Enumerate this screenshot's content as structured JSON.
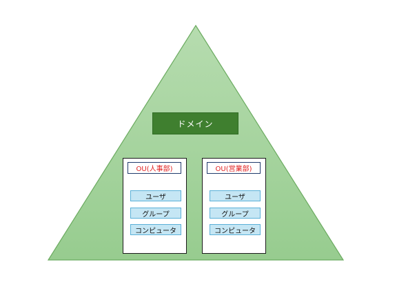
{
  "domain": {
    "label": "ドメイン"
  },
  "ous": [
    {
      "title": "OU(人事部)",
      "items": [
        "ユーザ",
        "グループ",
        "コンピュータ"
      ]
    },
    {
      "title": "OU(営業部)",
      "items": [
        "ユーザ",
        "グループ",
        "コンピュータ"
      ]
    }
  ],
  "colors": {
    "triangle_fill": "#a3d39c",
    "triangle_stroke": "#6aaa5f",
    "domain_fill": "#3f7f2f",
    "ou_title_text": "#e02020",
    "item_fill": "#c5e6f4",
    "item_border": "#5ab0d8"
  }
}
